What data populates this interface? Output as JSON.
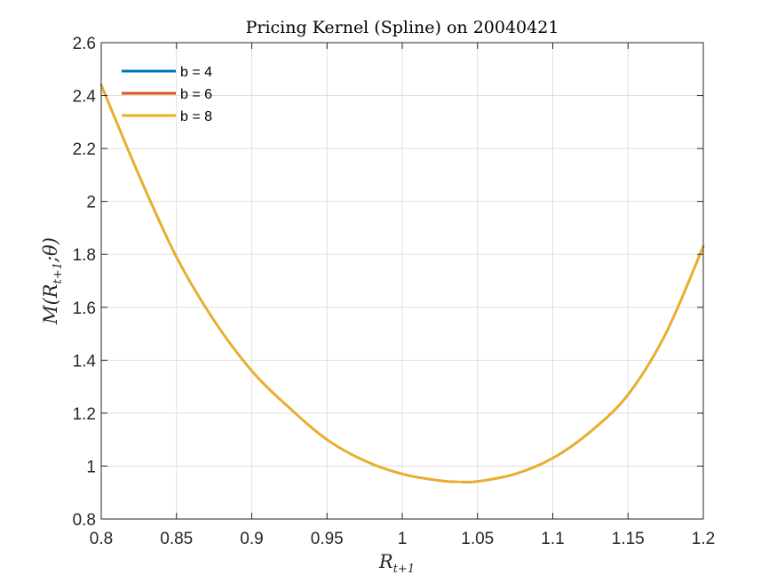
{
  "chart_data": {
    "type": "line",
    "title": "Pricing Kernel (Spline) on 20040421",
    "xlabel": {
      "main": "R",
      "sub": "t+1"
    },
    "ylabel": {
      "main": "M(R",
      "sub": "t+1",
      "tail": ";θ)"
    },
    "xlim": [
      0.8,
      1.2
    ],
    "ylim": [
      0.8,
      2.6
    ],
    "xticks": [
      0.8,
      0.85,
      0.9,
      0.95,
      1,
      1.05,
      1.1,
      1.15,
      1.2
    ],
    "xtick_labels": [
      "0.8",
      "0.85",
      "0.9",
      "0.95",
      "1",
      "1.05",
      "1.1",
      "1.15",
      "1.2"
    ],
    "yticks": [
      0.8,
      1,
      1.2,
      1.4,
      1.6,
      1.8,
      2,
      2.2,
      2.4,
      2.6
    ],
    "ytick_labels": [
      "0.8",
      "1",
      "1.2",
      "1.4",
      "1.6",
      "1.8",
      "2",
      "2.2",
      "2.4",
      "2.6"
    ],
    "grid": true,
    "legend_position": "top-left",
    "x": [
      0.8,
      0.825,
      0.85,
      0.875,
      0.9,
      0.925,
      0.95,
      0.975,
      1.0,
      1.025,
      1.04,
      1.05,
      1.075,
      1.1,
      1.125,
      1.15,
      1.175,
      1.2
    ],
    "series": [
      {
        "name": "b = 4",
        "color": "#0072BD",
        "values": [
          2.44,
          2.1,
          1.79,
          1.55,
          1.36,
          1.22,
          1.1,
          1.02,
          0.97,
          0.945,
          0.94,
          0.942,
          0.97,
          1.03,
          1.13,
          1.27,
          1.5,
          1.83
        ]
      },
      {
        "name": "b = 6",
        "color": "#D95319",
        "values": [
          2.44,
          2.1,
          1.79,
          1.55,
          1.36,
          1.22,
          1.1,
          1.02,
          0.97,
          0.945,
          0.94,
          0.942,
          0.97,
          1.03,
          1.13,
          1.27,
          1.5,
          1.83
        ]
      },
      {
        "name": "b = 8",
        "color": "#EDB120",
        "values": [
          2.44,
          2.1,
          1.79,
          1.55,
          1.36,
          1.22,
          1.1,
          1.02,
          0.97,
          0.945,
          0.94,
          0.942,
          0.97,
          1.03,
          1.13,
          1.27,
          1.5,
          1.83
        ]
      }
    ]
  }
}
